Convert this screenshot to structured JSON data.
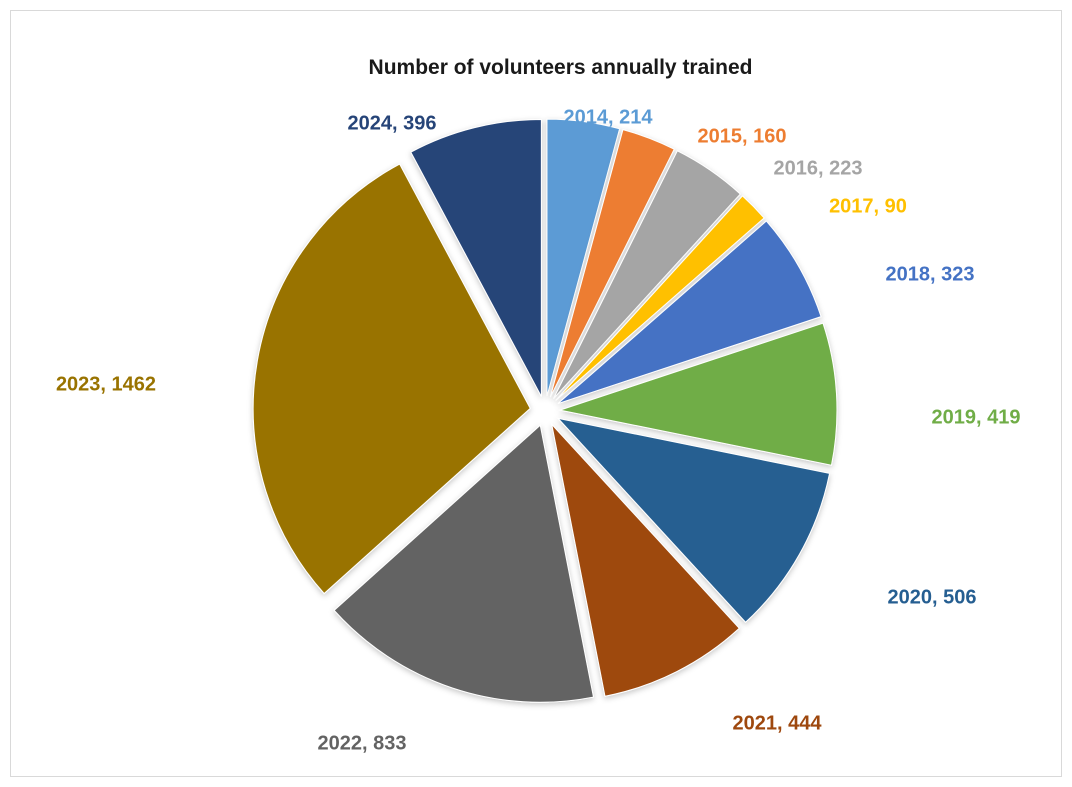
{
  "chart_data": {
    "type": "pie",
    "title": "Number of volunteers annually trained",
    "categories": [
      "2014",
      "2015",
      "2016",
      "2017",
      "2018",
      "2019",
      "2020",
      "2021",
      "2022",
      "2023",
      "2024"
    ],
    "values": [
      214,
      160,
      223,
      90,
      323,
      419,
      506,
      444,
      833,
      1462,
      396
    ],
    "colors": [
      "#5b9bd5",
      "#ed7d31",
      "#a5a5a5",
      "#ffc000",
      "#4472c4",
      "#70ad47",
      "#255e91",
      "#9e480e",
      "#636363",
      "#997300",
      "#264478"
    ],
    "labels": [
      "2014, 214",
      "2015, 160",
      "2016, 223",
      "2017, 90",
      "2018, 323",
      "2019, 419",
      "2020, 506",
      "2021, 444",
      "2022, 833",
      "2023, 1462",
      "2024, 396"
    ],
    "label_colors": [
      "#5b9bd5",
      "#ed7d31",
      "#a5a5a5",
      "#ffc000",
      "#4472c4",
      "#70ad47",
      "#255e91",
      "#9e480e",
      "#636363",
      "#997300",
      "#264478"
    ],
    "exploded": true,
    "legend": "none",
    "data_labels": "outside"
  }
}
